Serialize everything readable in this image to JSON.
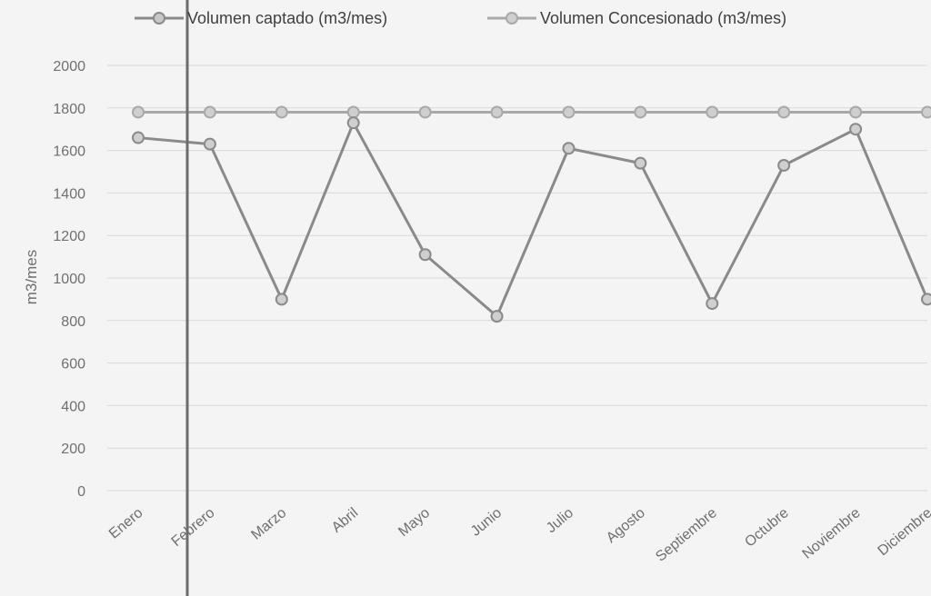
{
  "chart_data": {
    "type": "line",
    "title": "",
    "xlabel": "",
    "ylabel": "m3/mes",
    "ylim": [
      0,
      2000
    ],
    "yticks": [
      0,
      200,
      400,
      600,
      800,
      1000,
      1200,
      1400,
      1600,
      1800,
      2000
    ],
    "grid": true,
    "legend_position": "top",
    "categories": [
      "Enero",
      "Febrero",
      "Marzo",
      "Abril",
      "Mayo",
      "Junio",
      "Julio",
      "Agosto",
      "Septiembre",
      "Octubre",
      "Noviembre",
      "Diciembre"
    ],
    "series": [
      {
        "name": "Volumen captado (m3/mes)",
        "color": "#8a8a8a",
        "values": [
          1660,
          1630,
          900,
          1730,
          1110,
          820,
          1610,
          1540,
          880,
          1530,
          1700,
          900
        ]
      },
      {
        "name": "Volumen Concesionado (m3/mes)",
        "color": "#a9a9a9",
        "values": [
          1780,
          1780,
          1780,
          1780,
          1780,
          1780,
          1780,
          1780,
          1780,
          1780,
          1780,
          1780
        ]
      }
    ]
  },
  "legend": {
    "item1": "Volumen captado (m3/mes)",
    "item2": "Volumen Concesionado (m3/mes)"
  }
}
